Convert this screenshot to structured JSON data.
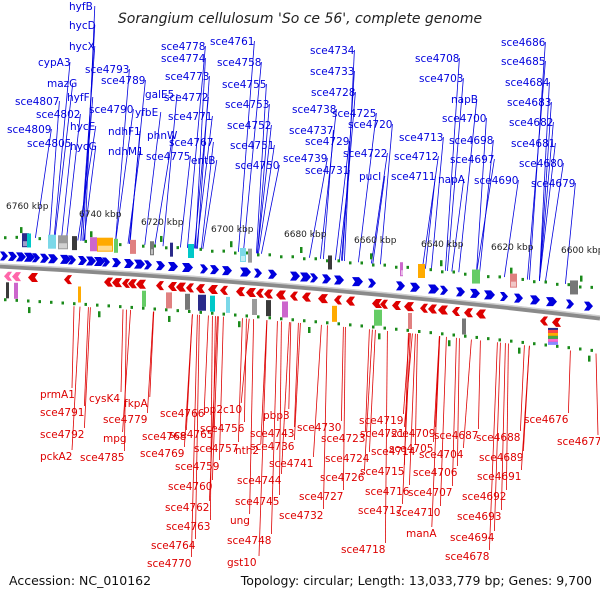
{
  "title": "Sorangium cellulosum 'So ce 56', complete genome",
  "footer": {
    "accession": "Accession: NC_010162",
    "summary": "Topology: circular; Length: 13,033,779 bp; Genes: 9,700"
  },
  "colors": {
    "forward": "#0000dd",
    "reverse": "#dd0000",
    "axis": "#666666",
    "tick": "#1a8a1a",
    "text": "#111111"
  },
  "scale": [
    {
      "label": "6760 kbp"
    },
    {
      "label": "6740 kbp"
    },
    {
      "label": "6720 kbp"
    },
    {
      "label": "6700 kbp"
    },
    {
      "label": "6680 kbp"
    },
    {
      "label": "6660 kbp"
    },
    {
      "label": "6640 kbp"
    },
    {
      "label": "6620 kbp"
    },
    {
      "label": "6600 kbp"
    }
  ],
  "forward_genes": [
    {
      "label": "hyfB"
    },
    {
      "label": "hycD"
    },
    {
      "label": "hycX"
    },
    {
      "label": "cypA3"
    },
    {
      "label": "mazG"
    },
    {
      "label": "sce4807"
    },
    {
      "label": "hyfF"
    },
    {
      "label": "sce4802"
    },
    {
      "label": "sce4809"
    },
    {
      "label": "hycE"
    },
    {
      "label": "sce4805"
    },
    {
      "label": "hycG"
    },
    {
      "label": "sce4793"
    },
    {
      "label": "sce4789"
    },
    {
      "label": "sce4790"
    },
    {
      "label": "ndhF1"
    },
    {
      "label": "ndhM1"
    },
    {
      "label": "galE5"
    },
    {
      "label": "yfbE"
    },
    {
      "label": "sce4778"
    },
    {
      "label": "sce4774"
    },
    {
      "label": "sce4773"
    },
    {
      "label": "sce4772"
    },
    {
      "label": "sce4771"
    },
    {
      "label": "phnW"
    },
    {
      "label": "sce4775"
    },
    {
      "label": "sce4767"
    },
    {
      "label": "entB"
    },
    {
      "label": "sce4761"
    },
    {
      "label": "sce4758"
    },
    {
      "label": "sce4755"
    },
    {
      "label": "sce4753"
    },
    {
      "label": "sce4752"
    },
    {
      "label": "sce4751"
    },
    {
      "label": "sce4750"
    },
    {
      "label": "sce4734"
    },
    {
      "label": "sce4733"
    },
    {
      "label": "sce4728"
    },
    {
      "label": "sce4738"
    },
    {
      "label": "sce4725"
    },
    {
      "label": "sce4737"
    },
    {
      "label": "sce4720"
    },
    {
      "label": "sce4729"
    },
    {
      "label": "sce4722"
    },
    {
      "label": "sce4739"
    },
    {
      "label": "sce4731"
    },
    {
      "label": "pucI"
    },
    {
      "label": "sce4708"
    },
    {
      "label": "sce4703"
    },
    {
      "label": "napB"
    },
    {
      "label": "sce4700"
    },
    {
      "label": "sce4713"
    },
    {
      "label": "sce4698"
    },
    {
      "label": "sce4712"
    },
    {
      "label": "sce4697"
    },
    {
      "label": "sce4711"
    },
    {
      "label": "napA"
    },
    {
      "label": "sce4690"
    },
    {
      "label": "sce4686"
    },
    {
      "label": "sce4685"
    },
    {
      "label": "sce4684"
    },
    {
      "label": "sce4683"
    },
    {
      "label": "sce4682"
    },
    {
      "label": "sce4681"
    },
    {
      "label": "sce4680"
    },
    {
      "label": "sce4679"
    }
  ],
  "reverse_genes": [
    {
      "label": "prmA1"
    },
    {
      "label": "sce4791"
    },
    {
      "label": "sce4792"
    },
    {
      "label": "pckA2"
    },
    {
      "label": "cysK4"
    },
    {
      "label": "fkpA"
    },
    {
      "label": "sce4779"
    },
    {
      "label": "mpg"
    },
    {
      "label": "sce4785"
    },
    {
      "label": "sce4766"
    },
    {
      "label": "sce4768"
    },
    {
      "label": "sce4769"
    },
    {
      "label": "sce4765"
    },
    {
      "label": "sce4759"
    },
    {
      "label": "sce4760"
    },
    {
      "label": "sce4762"
    },
    {
      "label": "sce4763"
    },
    {
      "label": "sce4764"
    },
    {
      "label": "sce4770"
    },
    {
      "label": "pp2c10"
    },
    {
      "label": "sce4756"
    },
    {
      "label": "sce4757"
    },
    {
      "label": "nth2"
    },
    {
      "label": "sce4744"
    },
    {
      "label": "sce4745"
    },
    {
      "label": "ung"
    },
    {
      "label": "sce4748"
    },
    {
      "label": "gst10"
    },
    {
      "label": "pbp3"
    },
    {
      "label": "sce4743"
    },
    {
      "label": "sce4736"
    },
    {
      "label": "sce4741"
    },
    {
      "label": "sce4730"
    },
    {
      "label": "sce4723"
    },
    {
      "label": "sce4724"
    },
    {
      "label": "sce4726"
    },
    {
      "label": "sce4727"
    },
    {
      "label": "sce4732"
    },
    {
      "label": "sce4719"
    },
    {
      "label": "sce4721"
    },
    {
      "label": "sce4714"
    },
    {
      "label": "sce4715"
    },
    {
      "label": "sce4716"
    },
    {
      "label": "sce4717"
    },
    {
      "label": "sce4718"
    },
    {
      "label": "sce4709"
    },
    {
      "label": "sce4705"
    },
    {
      "label": "sce4704"
    },
    {
      "label": "sce4706"
    },
    {
      "label": "sce4707"
    },
    {
      "label": "sce4710"
    },
    {
      "label": "manA"
    },
    {
      "label": "sce4687"
    },
    {
      "label": "sce4688"
    },
    {
      "label": "sce4689"
    },
    {
      "label": "sce4691"
    },
    {
      "label": "sce4692"
    },
    {
      "label": "sce4693"
    },
    {
      "label": "sce4694"
    },
    {
      "label": "sce4678"
    },
    {
      "label": "sce4676"
    },
    {
      "label": "sce4677"
    }
  ]
}
